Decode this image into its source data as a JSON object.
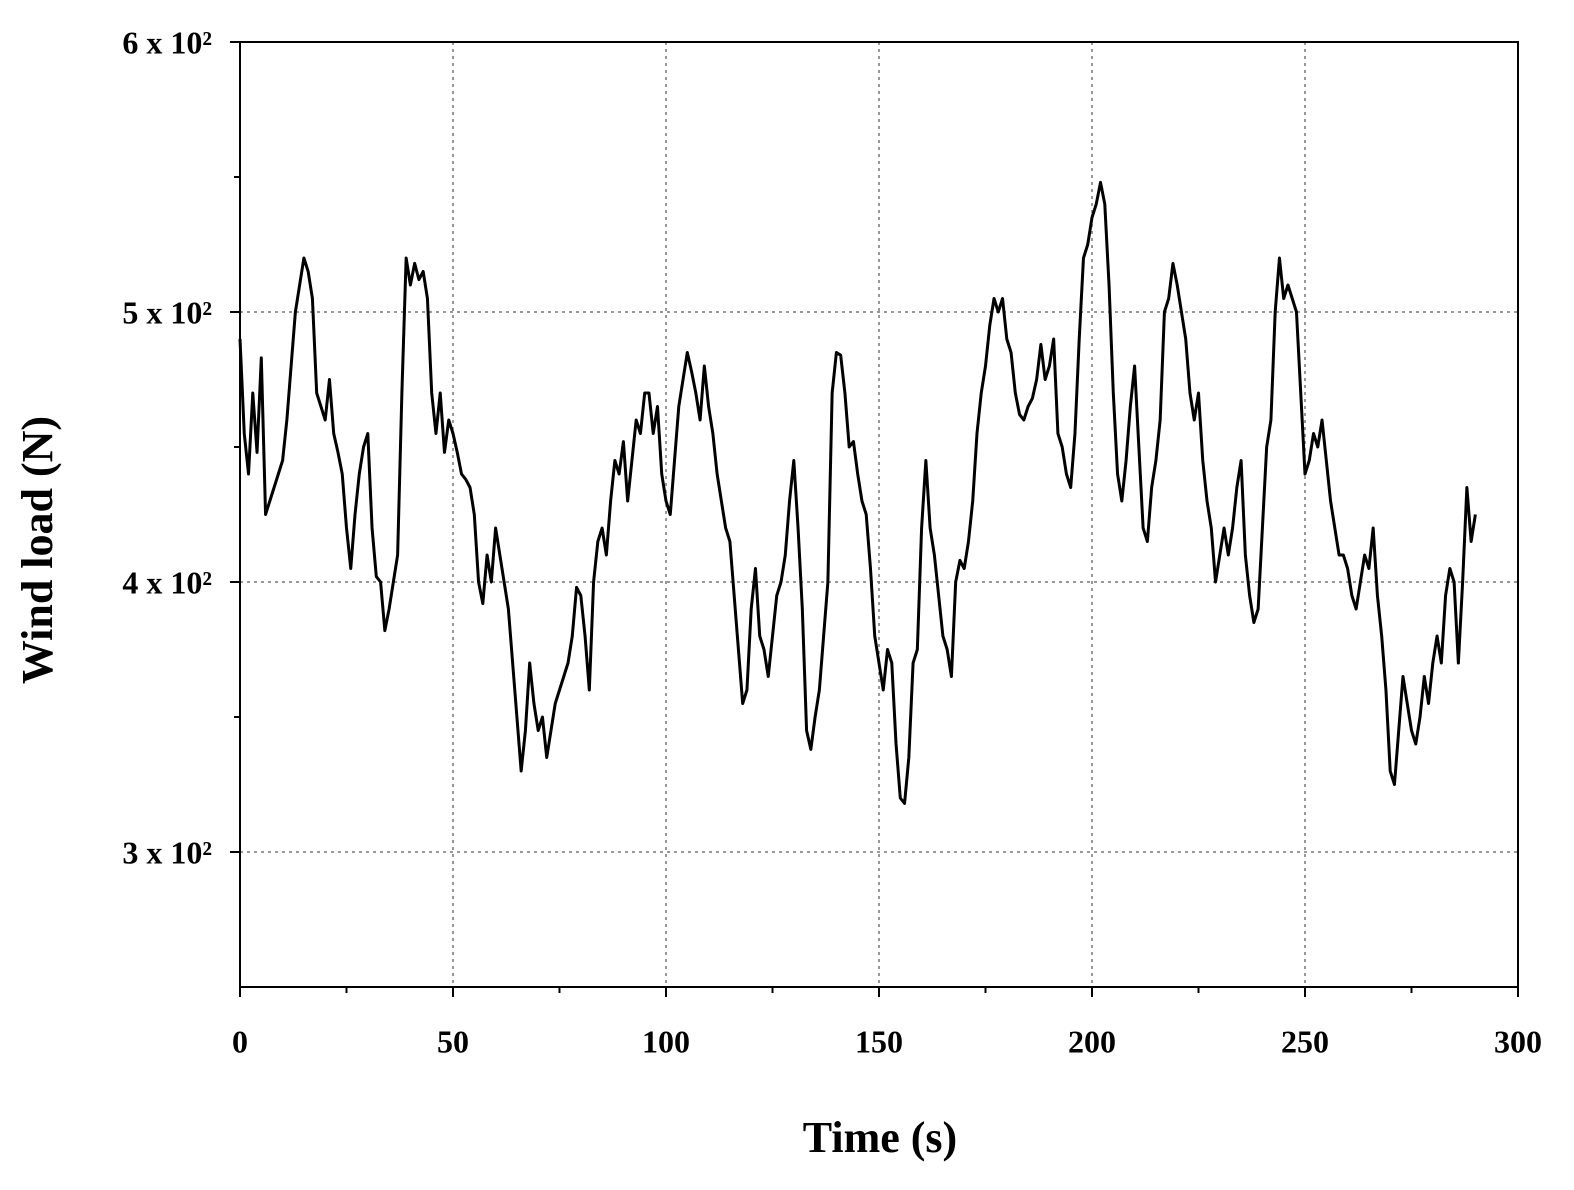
{
  "chart_data": {
    "type": "line",
    "xlabel": "Time (s)",
    "ylabel": "Wind load (N)",
    "color": "#000000",
    "xlim": [
      0,
      300
    ],
    "ylim": [
      250,
      600
    ],
    "xticks": [
      0,
      50,
      100,
      150,
      200,
      250,
      300
    ],
    "yticks": [
      {
        "value": 300,
        "label": "3 x 10²"
      },
      {
        "value": 400,
        "label": "4 x 10²"
      },
      {
        "value": 500,
        "label": "5 x 10²"
      },
      {
        "value": 600,
        "label": "6 x 10²"
      }
    ],
    "xminorticks": [
      25,
      75,
      125,
      175,
      225,
      275
    ],
    "yminorticks": [
      350,
      450,
      550
    ],
    "grid": true,
    "x": [
      0,
      1,
      2,
      3,
      4,
      5,
      6,
      7,
      8,
      9,
      10,
      11,
      12,
      13,
      14,
      15,
      16,
      17,
      18,
      19,
      20,
      21,
      22,
      23,
      24,
      25,
      26,
      27,
      28,
      29,
      30,
      31,
      32,
      33,
      34,
      35,
      36,
      37,
      38,
      39,
      40,
      41,
      42,
      43,
      44,
      45,
      46,
      47,
      48,
      49,
      50,
      51,
      52,
      53,
      54,
      55,
      56,
      57,
      58,
      59,
      60,
      61,
      62,
      63,
      64,
      65,
      66,
      67,
      68,
      69,
      70,
      71,
      72,
      73,
      74,
      75,
      76,
      77,
      78,
      79,
      80,
      81,
      82,
      83,
      84,
      85,
      86,
      87,
      88,
      89,
      90,
      91,
      92,
      93,
      94,
      95,
      96,
      97,
      98,
      99,
      100,
      101,
      102,
      103,
      104,
      105,
      106,
      107,
      108,
      109,
      110,
      111,
      112,
      113,
      114,
      115,
      116,
      117,
      118,
      119,
      120,
      121,
      122,
      123,
      124,
      125,
      126,
      127,
      128,
      129,
      130,
      131,
      132,
      133,
      134,
      135,
      136,
      137,
      138,
      139,
      140,
      141,
      142,
      143,
      144,
      145,
      146,
      147,
      148,
      149,
      150,
      151,
      152,
      153,
      154,
      155,
      156,
      157,
      158,
      159,
      160,
      161,
      162,
      163,
      164,
      165,
      166,
      167,
      168,
      169,
      170,
      171,
      172,
      173,
      174,
      175,
      176,
      177,
      178,
      179,
      180,
      181,
      182,
      183,
      184,
      185,
      186,
      187,
      188,
      189,
      190,
      191,
      192,
      193,
      194,
      195,
      196,
      197,
      198,
      199,
      200,
      201,
      202,
      203,
      204,
      205,
      206,
      207,
      208,
      209,
      210,
      211,
      212,
      213,
      214,
      215,
      216,
      217,
      218,
      219,
      220,
      221,
      222,
      223,
      224,
      225,
      226,
      227,
      228,
      229,
      230,
      231,
      232,
      233,
      234,
      235,
      236,
      237,
      238,
      239,
      240,
      241,
      242,
      243,
      244,
      245,
      246,
      247,
      248,
      249,
      250,
      251,
      252,
      253,
      254,
      255,
      256,
      257,
      258,
      259,
      260,
      261,
      262,
      263,
      264,
      265,
      266,
      267,
      268,
      269,
      270,
      271,
      272,
      273,
      274,
      275,
      276,
      277,
      278,
      279,
      280,
      281,
      282,
      283,
      284,
      285,
      286,
      287,
      288,
      289,
      290
    ],
    "values": [
      490,
      455,
      440,
      470,
      448,
      483,
      425,
      430,
      435,
      440,
      445,
      460,
      480,
      500,
      510,
      520,
      515,
      505,
      470,
      465,
      460,
      475,
      455,
      448,
      440,
      420,
      405,
      425,
      440,
      450,
      455,
      420,
      402,
      400,
      382,
      390,
      400,
      410,
      470,
      520,
      510,
      518,
      512,
      515,
      505,
      470,
      455,
      470,
      448,
      460,
      455,
      448,
      440,
      438,
      435,
      425,
      400,
      392,
      410,
      400,
      420,
      410,
      400,
      390,
      370,
      350,
      330,
      345,
      370,
      355,
      345,
      350,
      335,
      345,
      355,
      360,
      365,
      370,
      380,
      398,
      395,
      380,
      360,
      400,
      415,
      420,
      410,
      430,
      445,
      440,
      452,
      430,
      445,
      460,
      455,
      470,
      470,
      455,
      465,
      440,
      430,
      425,
      445,
      465,
      475,
      485,
      478,
      470,
      460,
      480,
      465,
      455,
      440,
      430,
      420,
      415,
      395,
      375,
      355,
      360,
      390,
      405,
      380,
      375,
      365,
      380,
      395,
      400,
      410,
      430,
      445,
      420,
      390,
      345,
      338,
      350,
      360,
      380,
      400,
      470,
      485,
      484,
      470,
      450,
      452,
      440,
      430,
      425,
      405,
      380,
      370,
      360,
      375,
      370,
      340,
      320,
      318,
      335,
      370,
      375,
      420,
      445,
      420,
      410,
      395,
      380,
      375,
      365,
      400,
      408,
      405,
      415,
      430,
      455,
      470,
      480,
      495,
      505,
      500,
      505,
      490,
      485,
      470,
      462,
      460,
      465,
      468,
      475,
      488,
      475,
      480,
      490,
      455,
      450,
      440,
      435,
      455,
      490,
      520,
      525,
      535,
      540,
      548,
      540,
      510,
      470,
      440,
      430,
      445,
      465,
      480,
      450,
      420,
      415,
      435,
      445,
      460,
      500,
      505,
      518,
      510,
      500,
      490,
      470,
      460,
      470,
      445,
      430,
      420,
      400,
      410,
      420,
      410,
      420,
      435,
      445,
      410,
      395,
      385,
      390,
      420,
      450,
      460,
      500,
      520,
      505,
      510,
      505,
      500,
      470,
      440,
      445,
      455,
      450,
      460,
      445,
      430,
      420,
      410,
      410,
      405,
      395,
      390,
      400,
      410,
      405,
      420,
      395,
      380,
      360,
      330,
      325,
      345,
      365,
      355,
      345,
      340,
      350,
      365,
      355,
      370,
      380,
      370,
      395,
      405,
      400,
      370,
      400,
      435,
      415,
      425
    ]
  }
}
